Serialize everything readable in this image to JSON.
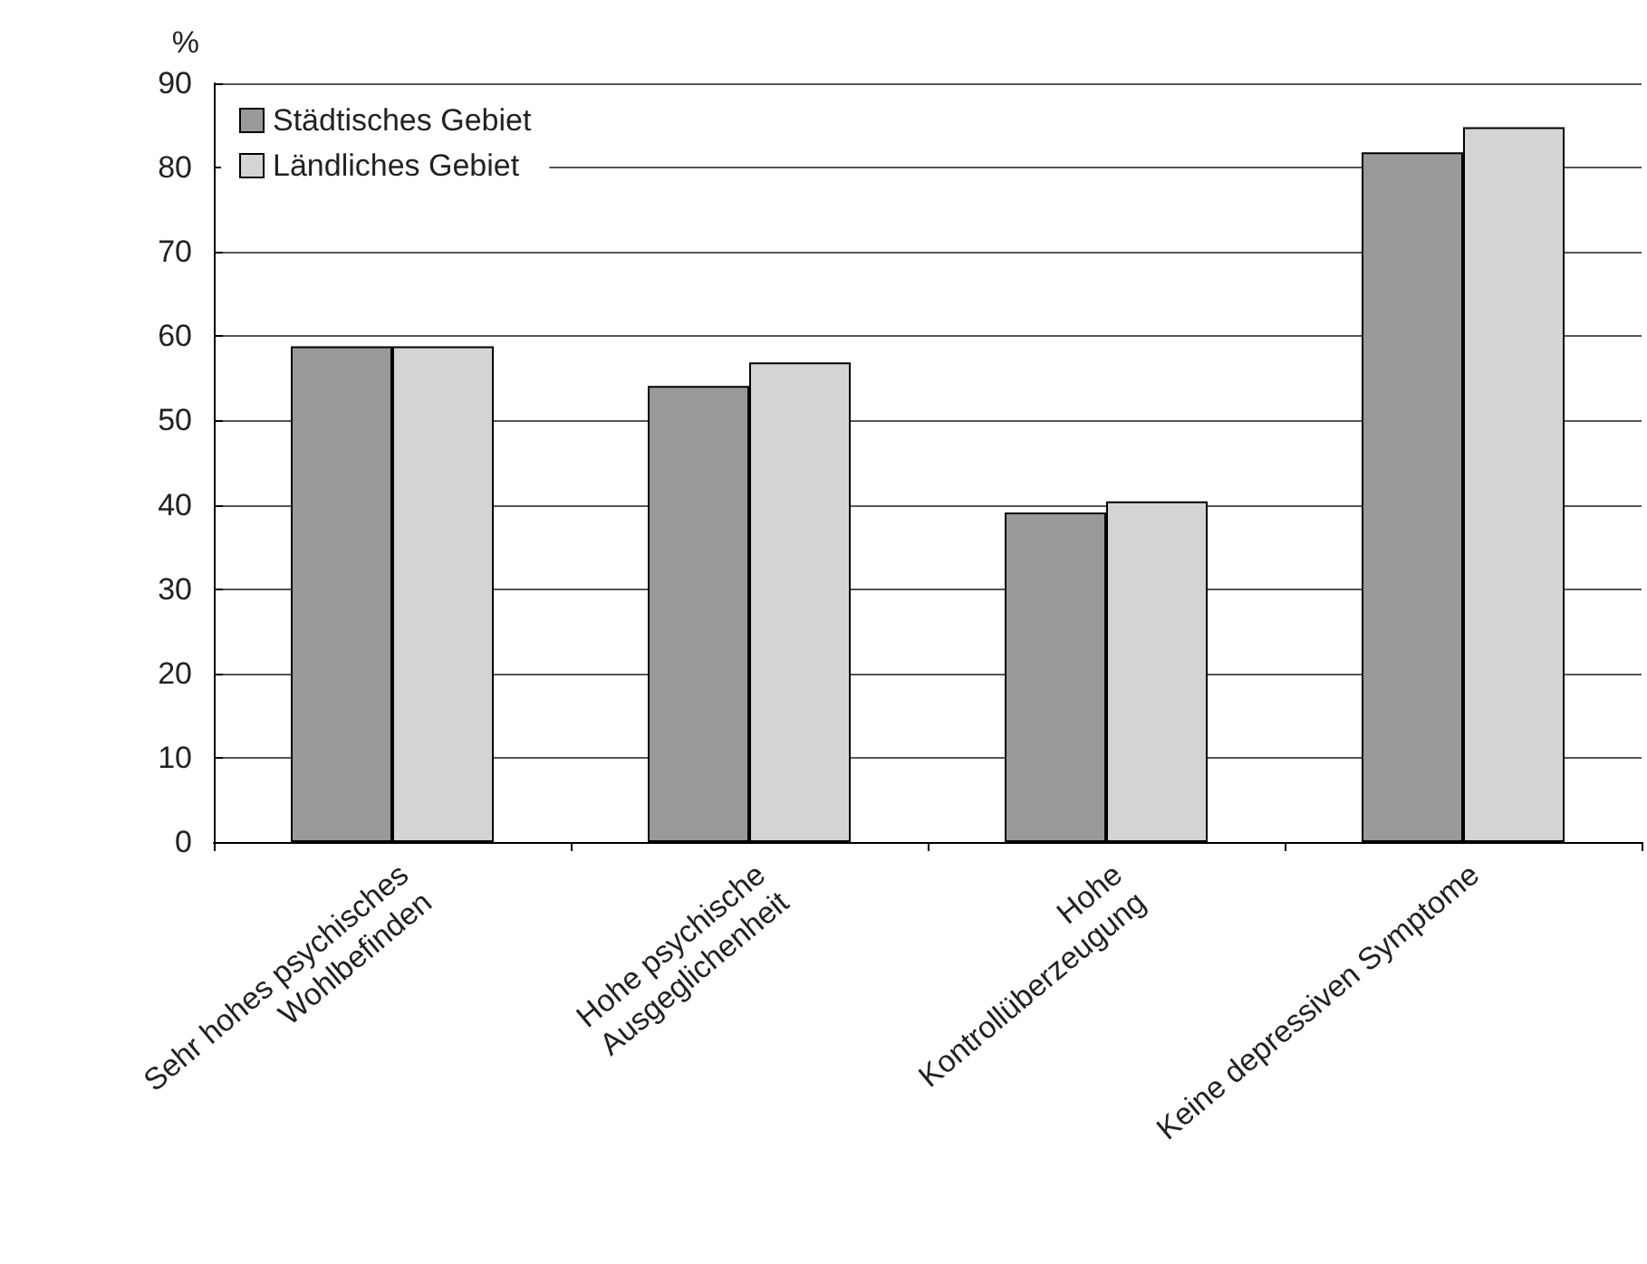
{
  "chart_data": {
    "type": "bar",
    "ylabel": "%",
    "categories": [
      "Sehr hohes psychisches\nWohlbefinden",
      "Hohe psychische\nAusgeglichenheit",
      "Hohe\nKontrollüberzeugung",
      "Keine depressiven Symptome"
    ],
    "series": [
      {
        "name": "Städtisches Gebiet",
        "color": "#999999",
        "values": [
          58.8,
          54.1,
          39.1,
          81.8
        ]
      },
      {
        "name": "Ländliches Gebiet",
        "color": "#d4d4d4",
        "values": [
          58.8,
          56.9,
          40.4,
          84.8
        ]
      }
    ],
    "ylim": [
      0,
      90
    ],
    "yticks": [
      0,
      10,
      20,
      30,
      40,
      50,
      60,
      70,
      80,
      90
    ],
    "grid": "y",
    "legend": "top left"
  }
}
